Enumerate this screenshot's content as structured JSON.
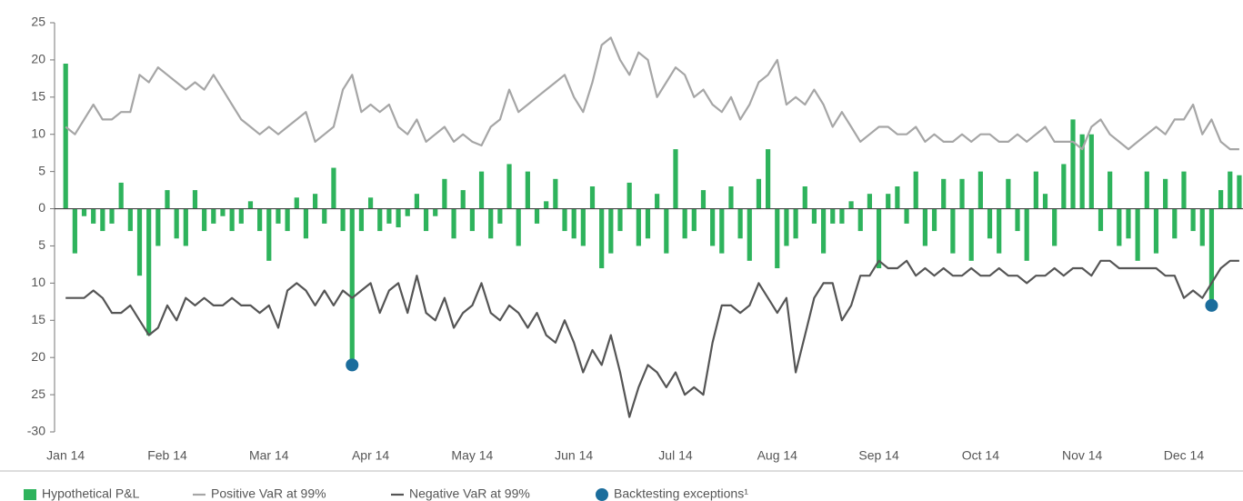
{
  "chart_data": {
    "type": "bar-line",
    "ylim": [
      -30,
      25
    ],
    "yticks": [
      -30,
      {
        "value": -25,
        "label": "25"
      },
      {
        "value": -20,
        "label": "20"
      },
      {
        "value": -15,
        "label": "15"
      },
      {
        "value": -10,
        "label": "10"
      },
      {
        "value": -5,
        "label": "5"
      },
      0,
      5,
      10,
      15,
      20,
      25
    ],
    "xlim": [
      -1.2,
      127.4
    ],
    "xticks": [
      {
        "value": 0,
        "label": "Jan 14"
      },
      {
        "value": 11,
        "label": "Feb 14"
      },
      {
        "value": 22,
        "label": "Mar 14"
      },
      {
        "value": 33,
        "label": "Apr 14"
      },
      {
        "value": 44,
        "label": "May 14"
      },
      {
        "value": 55,
        "label": "Jun 14"
      },
      {
        "value": 66,
        "label": "Jul 14"
      },
      {
        "value": 77,
        "label": "Aug 14"
      },
      {
        "value": 88,
        "label": "Sep 14"
      },
      {
        "value": 99,
        "label": "Oct 14"
      },
      {
        "value": 110,
        "label": "Nov 14"
      },
      {
        "value": 121,
        "label": "Dec 14"
      }
    ],
    "series": [
      {
        "name": "Hypothetical P&L",
        "type": "bar",
        "color": "#2eb35c",
        "values": [
          19.5,
          -6,
          -1,
          -2,
          -3,
          -2,
          3.5,
          -3,
          -9,
          -17,
          -5,
          2.5,
          -4,
          -5,
          2.5,
          -3,
          -2,
          -1,
          -3,
          -2,
          1,
          -3,
          -7,
          -2,
          -3,
          1.5,
          -4,
          2,
          -2,
          5.5,
          -3,
          -21,
          -3,
          1.5,
          -3,
          -2,
          -2.5,
          -1,
          2,
          -3,
          -1,
          4,
          -4,
          2.5,
          -3,
          5,
          -4,
          -2,
          6,
          -5,
          5,
          -2,
          1,
          4,
          -3,
          -4,
          -5,
          3,
          -8,
          -6,
          -3,
          3.5,
          -5,
          -4,
          2,
          -6,
          8,
          -4,
          -3,
          2.5,
          -5,
          -6,
          3,
          -4,
          -7,
          4,
          8,
          -8,
          -5,
          -4,
          3,
          -2,
          -6,
          -2,
          -2,
          1,
          -3,
          2,
          -8,
          2,
          3,
          -2,
          5,
          -5,
          -3,
          4,
          -6,
          4,
          -7,
          5,
          -4,
          -6,
          4,
          -3,
          -7,
          5,
          2,
          -5,
          6,
          12,
          10,
          10,
          -3,
          5,
          -5,
          -4,
          -7,
          5,
          -6,
          4,
          -4,
          5,
          -3,
          -5,
          -13,
          2.5,
          5,
          4.5
        ]
      },
      {
        "name": "Positive VaR at 99%",
        "type": "line",
        "color": "#a6a6a6",
        "values": [
          11,
          10,
          12,
          14,
          12,
          12,
          13,
          13,
          18,
          17,
          19,
          18,
          17,
          16,
          17,
          16,
          18,
          16,
          14,
          12,
          11,
          10,
          11,
          10,
          11,
          12,
          13,
          9,
          10,
          11,
          16,
          18,
          13,
          14,
          13,
          14,
          11,
          10,
          12,
          9,
          10,
          11,
          9,
          10,
          9,
          8.5,
          11,
          12,
          16,
          13,
          14,
          15,
          16,
          17,
          18,
          15,
          13,
          17,
          22,
          23,
          20,
          18,
          21,
          20,
          15,
          17,
          19,
          18,
          15,
          16,
          14,
          13,
          15,
          12,
          14,
          17,
          18,
          20,
          14,
          15,
          14,
          16,
          14,
          11,
          13,
          11,
          9,
          10,
          11,
          11,
          10,
          10,
          11,
          9,
          10,
          9,
          9,
          10,
          9,
          10,
          10,
          9,
          9,
          10,
          9,
          10,
          11,
          9,
          9,
          9,
          8,
          11,
          12,
          10,
          9,
          8,
          9,
          10,
          11,
          10,
          12,
          12,
          14,
          10,
          12,
          9,
          8,
          8
        ]
      },
      {
        "name": "Negative VaR at 99%",
        "type": "line",
        "color": "#555555",
        "values": [
          -12,
          -12,
          -12,
          -11,
          -12,
          -14,
          -14,
          -13,
          -15,
          -17,
          -16,
          -13,
          -15,
          -12,
          -13,
          -12,
          -13,
          -13,
          -12,
          -13,
          -13,
          -14,
          -13,
          -16,
          -11,
          -10,
          -11,
          -13,
          -11,
          -13,
          -11,
          -12,
          -11,
          -10,
          -14,
          -11,
          -10,
          -14,
          -9,
          -14,
          -15,
          -12,
          -16,
          -14,
          -13,
          -10,
          -14,
          -15,
          -13,
          -14,
          -16,
          -14,
          -17,
          -18,
          -15,
          -18,
          -22,
          -19,
          -21,
          -17,
          -22,
          -28,
          -24,
          -21,
          -22,
          -24,
          -22,
          -25,
          -24,
          -25,
          -18,
          -13,
          -13,
          -14,
          -13,
          -10,
          -12,
          -14,
          -12,
          -22,
          -17,
          -12,
          -10,
          -10,
          -15,
          -13,
          -9,
          -9,
          -7,
          -8,
          -8,
          -7,
          -9,
          -8,
          -9,
          -8,
          -9,
          -9,
          -8,
          -9,
          -9,
          -8,
          -9,
          -9,
          -10,
          -9,
          -9,
          -8,
          -9,
          -8,
          -8,
          -9,
          -7,
          -7,
          -8,
          -8,
          -8,
          -8,
          -8,
          -9,
          -9,
          -12,
          -11,
          -12,
          -10,
          -8,
          -7,
          -7
        ]
      },
      {
        "name": "Backtesting exceptions¹",
        "type": "scatter",
        "color": "#1b6d9c",
        "x": [
          31,
          124
        ],
        "values": [
          -21,
          -13
        ]
      }
    ]
  }
}
